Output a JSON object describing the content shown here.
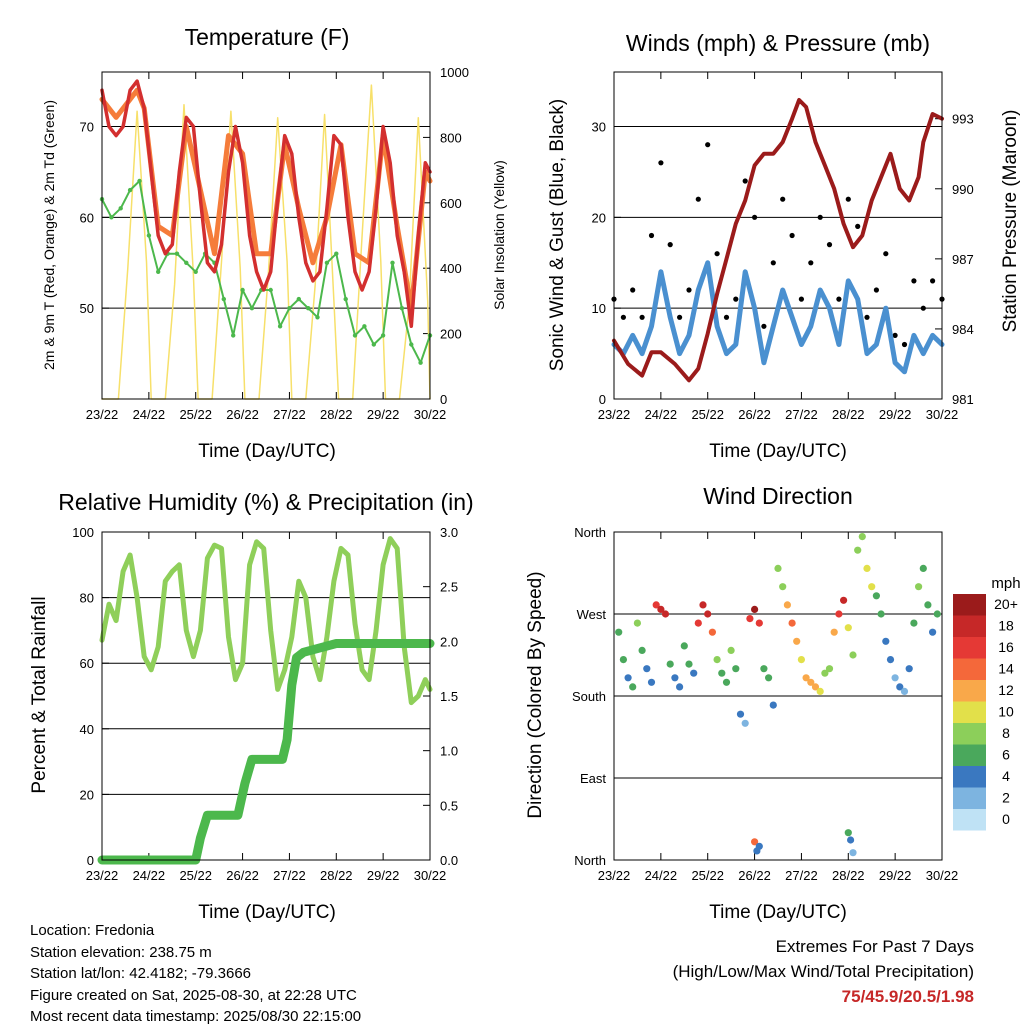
{
  "x_ticks": [
    "23/22",
    "24/22",
    "25/22",
    "26/22",
    "27/22",
    "28/22",
    "29/22",
    "30/22"
  ],
  "info": {
    "location": "Location: Fredonia",
    "elevation": "Station elevation: 238.75 m",
    "latlon": "Station lat/lon: 42.4182; -79.3666",
    "created": "Figure created on Sat, 2025-08-30, at 22:28 UTC",
    "recent": "Most recent data timestamp: 2025/08/30 22:15:00"
  },
  "extremes": {
    "title": "Extremes For Past 7 Days",
    "subtitle": "(High/Low/Max Wind/Total Precipitation)",
    "values": "75/45.9/20.5/1.98"
  },
  "colors": {
    "t2m": "#d32f2f",
    "t9m": "#f57c3a",
    "td": "#4cb84c",
    "solar": "#f7e06a",
    "wind": "#4a90d0",
    "gust": "#000000",
    "pressure": "#9b1b1b",
    "rh": "#8fcf5a",
    "precip": "#4cb84c"
  },
  "chart_data": [
    {
      "type": "line",
      "title": "Temperature (F)",
      "xlabel": "Time (Day/UTC)",
      "ylabel": "2m & 9m T (Red, Orange) & 2m Td (Green)",
      "ylabel_right": "Solar Insolation (Yellow)",
      "ylim": [
        40,
        76
      ],
      "yticks": [
        50,
        60,
        70
      ],
      "ylim_right": [
        0,
        1000
      ],
      "yticks_right": [
        0,
        200,
        400,
        600,
        800,
        1000
      ],
      "gridlines": [
        50,
        60,
        70
      ],
      "xlim": [
        0,
        7
      ],
      "series": [
        {
          "key": "t2m",
          "x": [
            0,
            0.15,
            0.3,
            0.45,
            0.6,
            0.75,
            0.9,
            1.05,
            1.2,
            1.35,
            1.5,
            1.65,
            1.8,
            1.95,
            2.1,
            2.25,
            2.4,
            2.55,
            2.7,
            2.85,
            3.0,
            3.15,
            3.3,
            3.45,
            3.6,
            3.75,
            3.9,
            4.05,
            4.2,
            4.35,
            4.5,
            4.65,
            4.8,
            4.95,
            5.1,
            5.25,
            5.4,
            5.55,
            5.7,
            5.85,
            6.0,
            6.15,
            6.3,
            6.45,
            6.6,
            6.75,
            6.9,
            7.0
          ],
          "values": [
            74,
            70,
            69,
            70,
            74,
            75,
            72,
            65,
            58,
            56,
            57,
            65,
            71,
            70,
            62,
            55,
            54,
            57,
            65,
            70,
            66,
            58,
            54,
            52,
            54,
            62,
            69,
            67,
            60,
            55,
            53,
            54,
            61,
            69,
            68,
            60,
            54,
            52,
            54,
            61,
            70,
            66,
            58,
            54,
            48,
            58,
            66,
            65
          ]
        },
        {
          "key": "t9m",
          "x": [
            0,
            0.3,
            0.6,
            0.75,
            0.9,
            1.2,
            1.5,
            1.8,
            2.1,
            2.4,
            2.7,
            3.0,
            3.3,
            3.6,
            3.9,
            4.2,
            4.5,
            4.8,
            5.1,
            5.4,
            5.7,
            6.0,
            6.3,
            6.6,
            6.9,
            7.0
          ],
          "values": [
            73,
            71,
            73,
            74,
            72,
            59,
            58,
            70,
            63,
            56,
            69,
            67,
            56,
            56,
            68,
            61,
            55,
            60,
            68,
            56,
            55,
            69,
            59,
            50,
            65,
            64
          ]
        },
        {
          "key": "td",
          "x": [
            0,
            0.2,
            0.4,
            0.6,
            0.8,
            1.0,
            1.2,
            1.4,
            1.6,
            1.8,
            2.0,
            2.2,
            2.4,
            2.6,
            2.8,
            3.0,
            3.2,
            3.4,
            3.6,
            3.8,
            4.0,
            4.2,
            4.4,
            4.6,
            4.8,
            5.0,
            5.2,
            5.4,
            5.6,
            5.8,
            6.0,
            6.2,
            6.4,
            6.6,
            6.8,
            7.0
          ],
          "values": [
            62,
            60,
            61,
            63,
            64,
            58,
            54,
            56,
            56,
            55,
            54,
            56,
            55,
            51,
            47,
            52,
            50,
            52,
            52,
            48,
            50,
            51,
            50,
            49,
            55,
            56,
            51,
            47,
            48,
            46,
            47,
            55,
            50,
            46,
            44,
            47
          ]
        },
        {
          "key": "solar",
          "x": [
            0,
            0.35,
            0.55,
            0.75,
            0.95,
            1.05,
            1.35,
            1.55,
            1.75,
            1.95,
            2.05,
            2.35,
            2.55,
            2.75,
            2.95,
            3.05,
            3.35,
            3.55,
            3.75,
            3.95,
            4.05,
            4.35,
            4.55,
            4.75,
            4.95,
            5.05,
            5.35,
            5.55,
            5.75,
            5.95,
            6.05,
            6.35,
            6.55,
            6.75,
            6.95,
            7.0
          ],
          "values": [
            0,
            0,
            400,
            880,
            420,
            0,
            0,
            350,
            900,
            380,
            0,
            0,
            420,
            880,
            400,
            0,
            0,
            380,
            860,
            420,
            0,
            0,
            350,
            870,
            300,
            0,
            0,
            500,
            960,
            420,
            0,
            0,
            280,
            860,
            300,
            0
          ]
        }
      ]
    },
    {
      "type": "line",
      "title": "Winds (mph) & Pressure (mb)",
      "xlabel": "Time (Day/UTC)",
      "ylabel": "Sonic Wind & Gust (Blue, Black)",
      "ylabel_right": "Station Pressure (Maroon)",
      "ylim": [
        0,
        36
      ],
      "yticks": [
        0,
        10,
        20,
        30
      ],
      "ylim_right": [
        981,
        995
      ],
      "yticks_right": [
        981,
        984,
        987,
        990,
        993
      ],
      "gridlines": [
        10,
        20,
        30
      ],
      "xlim": [
        0,
        7
      ],
      "series": [
        {
          "key": "wind",
          "x": [
            0,
            0.2,
            0.4,
            0.6,
            0.8,
            1.0,
            1.2,
            1.4,
            1.6,
            1.8,
            2.0,
            2.2,
            2.4,
            2.6,
            2.8,
            3.0,
            3.2,
            3.4,
            3.6,
            3.8,
            4.0,
            4.2,
            4.4,
            4.6,
            4.8,
            5.0,
            5.2,
            5.4,
            5.6,
            5.8,
            6.0,
            6.2,
            6.4,
            6.6,
            6.8,
            7.0
          ],
          "values": [
            6,
            5,
            7,
            5,
            8,
            14,
            9,
            5,
            7,
            12,
            15,
            8,
            5,
            6,
            14,
            10,
            4,
            8,
            12,
            9,
            6,
            8,
            12,
            10,
            6,
            13,
            11,
            5,
            6,
            10,
            4,
            3,
            7,
            5,
            7,
            6
          ]
        },
        {
          "key": "gust",
          "x": [
            0,
            0.2,
            0.4,
            0.6,
            0.8,
            1.0,
            1.2,
            1.4,
            1.6,
            1.8,
            2.0,
            2.2,
            2.4,
            2.6,
            2.8,
            3.0,
            3.2,
            3.4,
            3.6,
            3.8,
            4.0,
            4.2,
            4.4,
            4.6,
            4.8,
            5.0,
            5.2,
            5.4,
            5.6,
            5.8,
            6.0,
            6.2,
            6.4,
            6.6,
            6.8,
            7.0
          ],
          "values": [
            11,
            9,
            12,
            9,
            18,
            26,
            17,
            9,
            12,
            22,
            28,
            16,
            9,
            11,
            24,
            20,
            8,
            15,
            22,
            18,
            11,
            15,
            20,
            17,
            11,
            22,
            19,
            9,
            12,
            16,
            7,
            6,
            13,
            10,
            13,
            11
          ]
        },
        {
          "key": "pressure",
          "x": [
            0,
            0.3,
            0.6,
            0.8,
            1.0,
            1.3,
            1.6,
            1.8,
            2.0,
            2.2,
            2.4,
            2.6,
            2.8,
            3.0,
            3.2,
            3.4,
            3.6,
            3.8,
            3.95,
            4.1,
            4.3,
            4.5,
            4.7,
            4.9,
            5.1,
            5.3,
            5.5,
            5.7,
            5.9,
            6.1,
            6.3,
            6.5,
            6.6,
            6.8,
            7.0
          ],
          "values": [
            983.5,
            982.5,
            982.0,
            983.0,
            983.0,
            982.5,
            981.8,
            982.3,
            983.8,
            985.5,
            987.0,
            988.5,
            989.5,
            991.0,
            991.5,
            991.5,
            992.0,
            993.0,
            993.8,
            993.5,
            992.0,
            991.0,
            990.0,
            988.5,
            987.5,
            988.0,
            989.5,
            990.5,
            991.5,
            990.0,
            989.5,
            990.5,
            992.0,
            993.2,
            993.0
          ]
        }
      ]
    },
    {
      "type": "line",
      "title": "Relative Humidity (%) & Precipitation (in)",
      "xlabel": "Time (Day/UTC)",
      "ylabel": "Percent & Total Rainfall",
      "ylim": [
        0,
        100
      ],
      "yticks": [
        0,
        20,
        40,
        60,
        80,
        100
      ],
      "ylim_right": [
        0,
        3.0
      ],
      "yticks_right": [
        "0.0",
        "0.5",
        "1.0",
        "1.5",
        "2.0",
        "2.5",
        "3.0"
      ],
      "gridlines": [
        20,
        40,
        60,
        80
      ],
      "xlim": [
        0,
        7
      ],
      "series": [
        {
          "key": "rh",
          "x": [
            0,
            0.15,
            0.3,
            0.45,
            0.6,
            0.75,
            0.9,
            1.05,
            1.2,
            1.35,
            1.5,
            1.65,
            1.8,
            1.95,
            2.1,
            2.25,
            2.4,
            2.55,
            2.7,
            2.85,
            3.0,
            3.15,
            3.3,
            3.45,
            3.6,
            3.75,
            3.9,
            4.05,
            4.2,
            4.35,
            4.5,
            4.65,
            4.8,
            4.95,
            5.1,
            5.25,
            5.4,
            5.55,
            5.7,
            5.85,
            6.0,
            6.15,
            6.3,
            6.45,
            6.6,
            6.75,
            6.9,
            7.0
          ],
          "values": [
            67,
            78,
            73,
            88,
            93,
            80,
            62,
            58,
            65,
            85,
            88,
            90,
            70,
            62,
            70,
            92,
            96,
            95,
            68,
            55,
            60,
            90,
            97,
            95,
            70,
            52,
            58,
            68,
            85,
            80,
            62,
            55,
            68,
            85,
            95,
            93,
            72,
            58,
            55,
            70,
            90,
            98,
            95,
            65,
            48,
            50,
            55,
            52
          ]
        },
        {
          "key": "precip",
          "x": [
            0,
            1.0,
            2.0,
            2.1,
            2.25,
            2.9,
            3.05,
            3.2,
            3.85,
            3.95,
            4.05,
            4.15,
            4.3,
            5.0,
            7.0
          ],
          "values": [
            0,
            0,
            0,
            0.2,
            0.41,
            0.41,
            0.7,
            0.92,
            0.92,
            1.1,
            1.6,
            1.85,
            1.9,
            1.98,
            1.98
          ]
        }
      ]
    },
    {
      "type": "scatter",
      "title": "Wind Direction",
      "xlabel": "Time (Day/UTC)",
      "ylabel": "Direction (Colored By Speed)",
      "ytick_labels": [
        "North",
        "East",
        "South",
        "West",
        "North"
      ],
      "ylim": [
        0,
        360
      ],
      "gridlines": [
        90,
        180,
        270
      ],
      "xlim": [
        0,
        7
      ],
      "colorbar": {
        "title": "mph",
        "labels": [
          "20+",
          "18",
          "16",
          "14",
          "12",
          "10",
          "8",
          "6",
          "4",
          "2",
          "0"
        ],
        "colors": [
          "#9b1b1b",
          "#c62828",
          "#e53935",
          "#f4683a",
          "#f9a84a",
          "#e2e04a",
          "#8ccf5a",
          "#4aa85c",
          "#3a78c0",
          "#7db4e0",
          "#bfe2f5"
        ]
      },
      "x": [
        0.1,
        0.2,
        0.3,
        0.4,
        0.5,
        0.6,
        0.7,
        0.8,
        0.9,
        1.0,
        1.1,
        1.2,
        1.3,
        1.4,
        1.5,
        1.6,
        1.7,
        1.8,
        1.9,
        2.0,
        2.1,
        2.2,
        2.3,
        2.4,
        2.5,
        2.6,
        2.7,
        2.8,
        2.9,
        3.0,
        3.1,
        3.2,
        3.3,
        3.4,
        3.5,
        3.6,
        3.7,
        3.8,
        3.9,
        4.0,
        4.1,
        4.2,
        4.3,
        4.4,
        4.5,
        4.6,
        4.7,
        4.8,
        4.9,
        5.0,
        5.1,
        5.2,
        5.3,
        5.4,
        5.5,
        5.6,
        5.7,
        5.8,
        5.9,
        6.0,
        6.1,
        6.2,
        6.3,
        6.4,
        6.5,
        6.6,
        6.7,
        6.8,
        6.9,
        3.0,
        3.05,
        3.1,
        5.0,
        5.05,
        5.1
      ],
      "y": [
        250,
        220,
        200,
        190,
        260,
        230,
        210,
        195,
        280,
        275,
        270,
        215,
        200,
        190,
        235,
        215,
        205,
        260,
        280,
        270,
        250,
        220,
        205,
        195,
        230,
        210,
        160,
        150,
        265,
        275,
        260,
        210,
        200,
        170,
        320,
        300,
        280,
        260,
        240,
        220,
        200,
        195,
        190,
        185,
        205,
        210,
        250,
        270,
        285,
        255,
        225,
        340,
        355,
        320,
        300,
        290,
        270,
        240,
        220,
        200,
        190,
        185,
        210,
        260,
        300,
        320,
        280,
        250,
        270,
        20,
        10,
        15,
        30,
        22,
        8
      ],
      "speed": [
        6,
        5,
        4,
        6,
        7,
        5,
        3,
        4,
        16,
        18,
        17,
        5,
        4,
        3,
        6,
        5,
        4,
        15,
        18,
        17,
        14,
        8,
        6,
        5,
        7,
        5,
        3,
        2,
        16,
        19,
        15,
        6,
        5,
        3,
        8,
        7,
        12,
        14,
        12,
        10,
        11,
        12,
        11,
        10,
        8,
        7,
        12,
        15,
        18,
        9,
        7,
        7,
        8,
        9,
        10,
        6,
        5,
        4,
        3,
        2,
        3,
        2,
        4,
        6,
        8,
        6,
        5,
        4,
        6,
        14,
        4,
        3,
        5,
        4,
        2
      ]
    }
  ]
}
